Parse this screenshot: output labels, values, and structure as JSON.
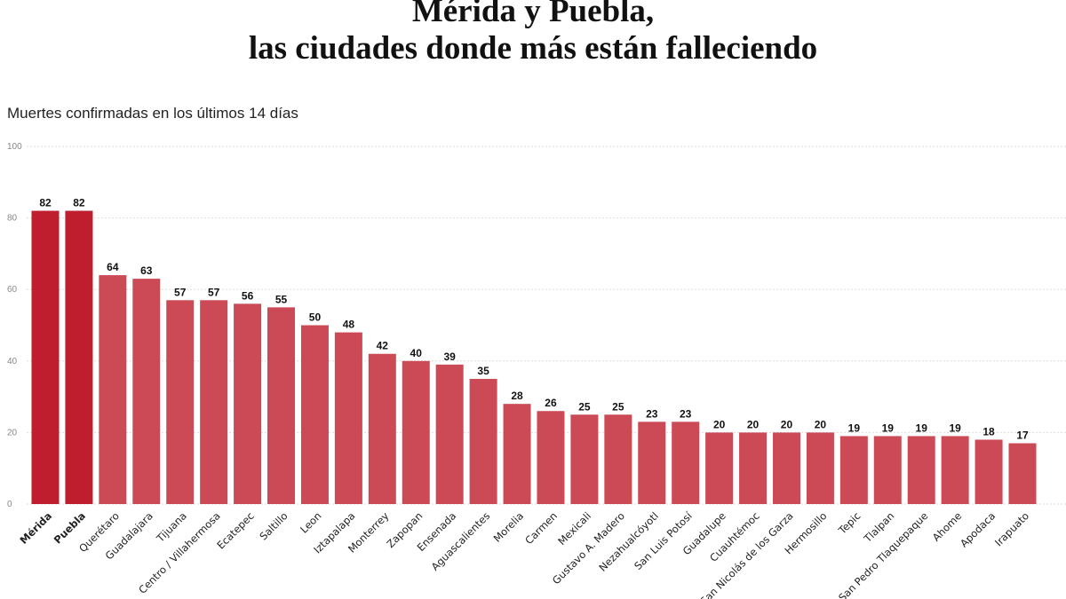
{
  "chart_data": {
    "type": "bar",
    "title_line1": "Mérida y Puebla,",
    "title_line2": "las ciudades donde más están falleciendo",
    "subtitle": "Muertes confirmadas en los últimos 14 días",
    "categories": [
      "Mérida",
      "Puebla",
      "Querétaro",
      "Guadalajara",
      "Tijuana",
      "Centro / Villahermosa",
      "Ecatepec",
      "Saltillo",
      "Leon",
      "Iztapalapa",
      "Monterrey",
      "Zapopan",
      "Ensenada",
      "Aguascalientes",
      "Morelia",
      "Carmen",
      "Mexicali",
      "Gustavo A. Madero",
      "Nezahualcóyotl",
      "San Luis Potosí",
      "Guadalupe",
      "Cuauhtémoc",
      "San Nicolás de los Garza",
      "Hermosillo",
      "Tepic",
      "Tlalpan",
      "San Pedro Tlaquepaque",
      "Ahome",
      "Apodaca",
      "Irapuato"
    ],
    "values": [
      82,
      82,
      64,
      63,
      57,
      57,
      56,
      55,
      50,
      48,
      42,
      40,
      39,
      35,
      28,
      26,
      25,
      25,
      23,
      23,
      20,
      20,
      20,
      20,
      19,
      19,
      19,
      19,
      18,
      17
    ],
    "highlighted": [
      "Mérida",
      "Puebla"
    ],
    "yticks": [
      0,
      20,
      40,
      60,
      80,
      100
    ],
    "ylim": [
      0,
      100
    ],
    "grid": true,
    "colors": {
      "highlight": "#be1e2d",
      "default": "#cc4a56"
    }
  }
}
